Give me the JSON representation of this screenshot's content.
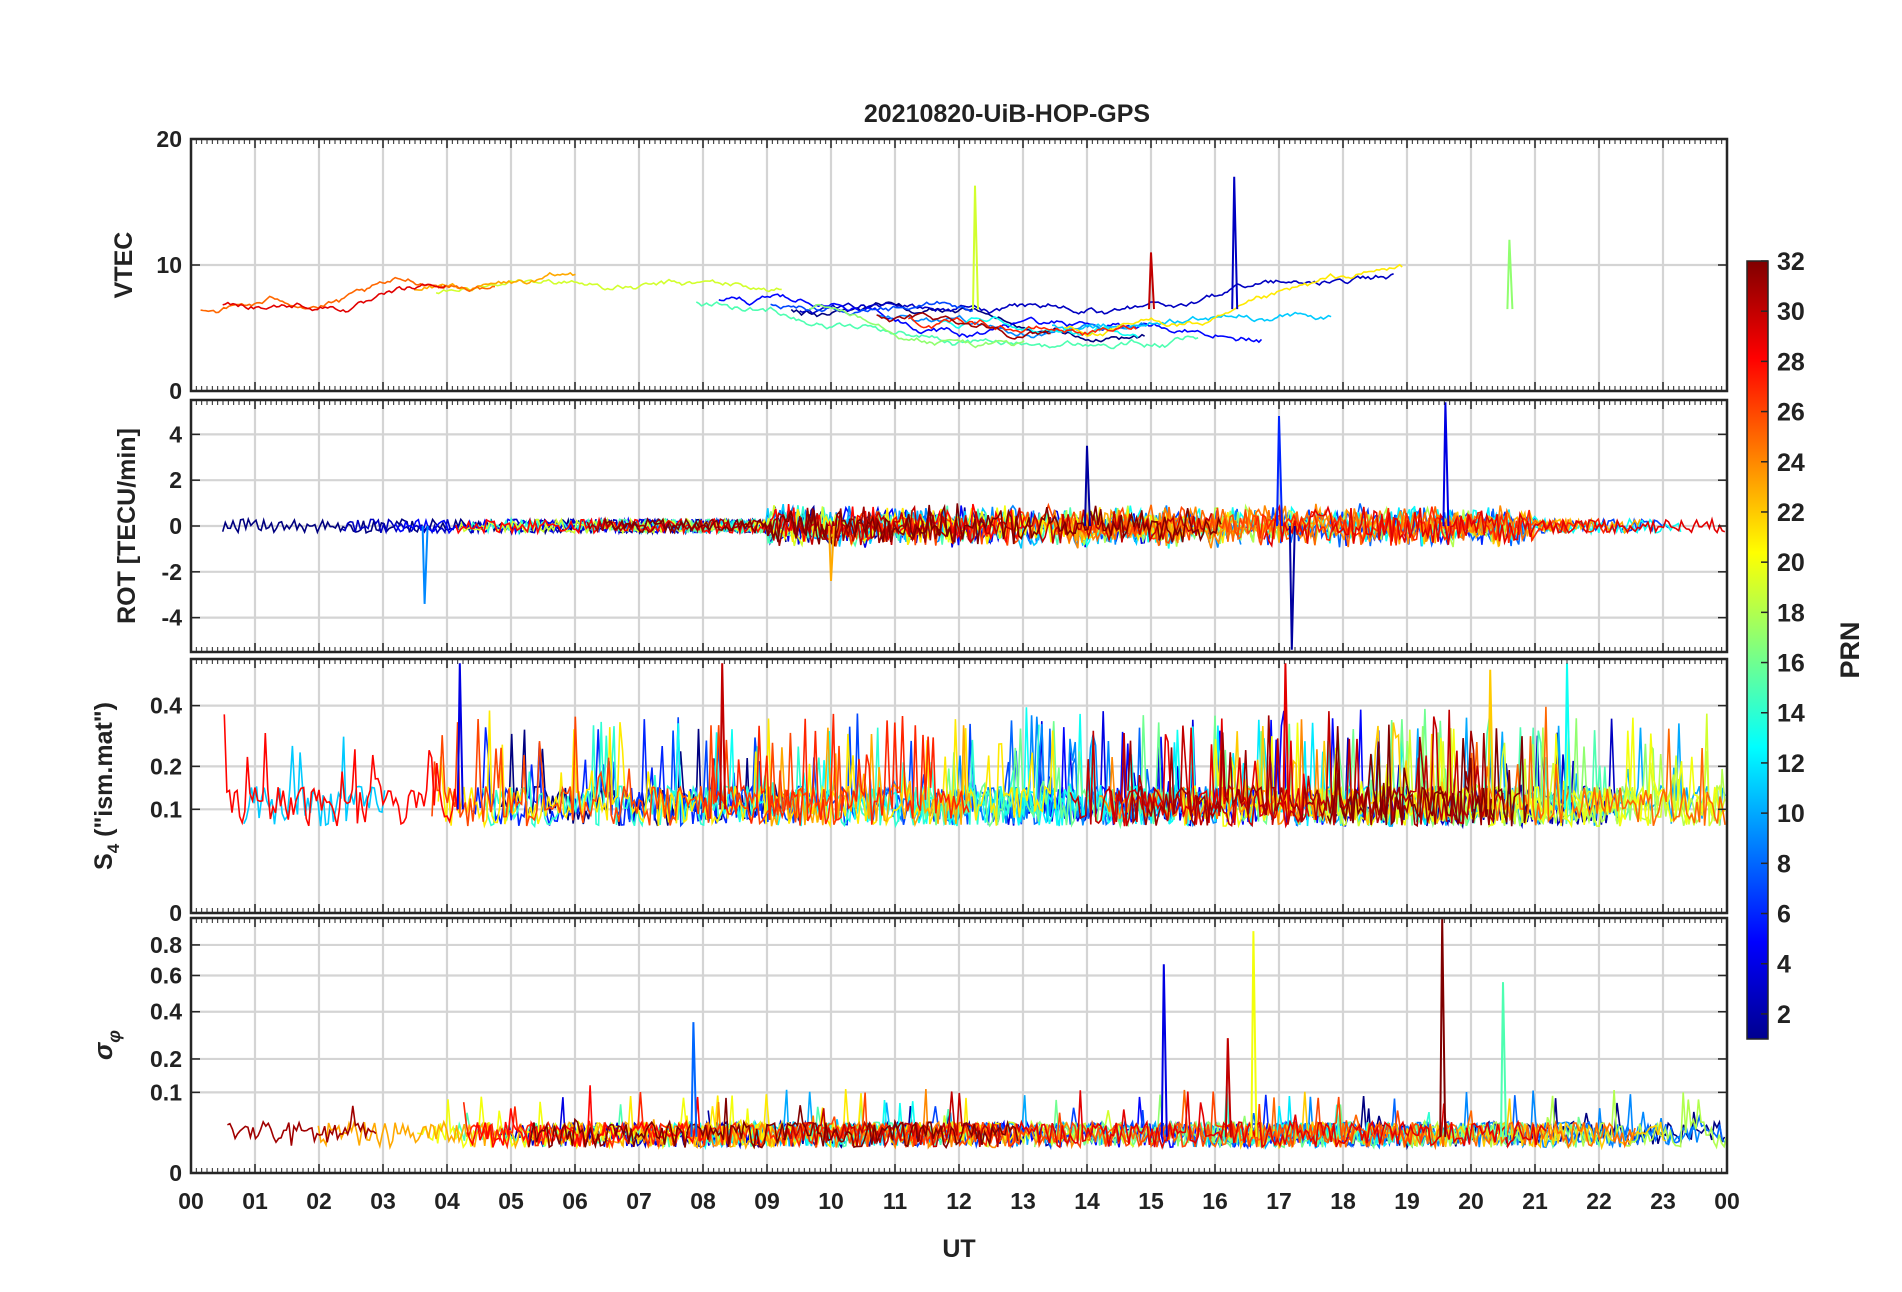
{
  "chart_data": {
    "type": "line",
    "title": "20210820-UiB-HOP-GPS",
    "xlabel": "UT",
    "x_range_hours": [
      0,
      24
    ],
    "x_tick_labels": [
      "00",
      "01",
      "02",
      "03",
      "04",
      "05",
      "06",
      "07",
      "08",
      "09",
      "10",
      "11",
      "12",
      "13",
      "14",
      "15",
      "16",
      "17",
      "18",
      "19",
      "20",
      "21",
      "22",
      "23",
      "00"
    ],
    "colorbar": {
      "label": "PRN",
      "range": [
        1,
        32
      ],
      "tick_labels": [
        "2",
        "4",
        "6",
        "8",
        "10",
        "12",
        "14",
        "16",
        "18",
        "20",
        "22",
        "24",
        "26",
        "28",
        "30",
        "32"
      ],
      "colormap": "jet"
    },
    "panels": [
      {
        "id": "vtec",
        "ylabel": "VTEC",
        "ylim": [
          0,
          20
        ],
        "yticks": [
          0,
          10,
          20
        ],
        "ytick_labels": [
          "0",
          "10",
          "20"
        ],
        "baseline": 6.5,
        "spikes": [
          {
            "prn": 19,
            "time_h": 12.25,
            "value": 16.3
          },
          {
            "prn": 3,
            "time_h": 16.3,
            "value": 17.0
          },
          {
            "prn": 30,
            "time_h": 15.0,
            "value": 11.0
          },
          {
            "prn": 17,
            "time_h": 20.6,
            "value": 12.0
          }
        ]
      },
      {
        "id": "rot",
        "ylabel": "ROT [TECU/min]",
        "ylim": [
          -5.5,
          5.5
        ],
        "yticks": [
          -4,
          -2,
          0,
          2,
          4
        ],
        "ytick_labels": [
          "-4",
          "-2",
          "0",
          "2",
          "4"
        ],
        "baseline": 0,
        "spikes": [
          {
            "prn": 9,
            "time_h": 3.65,
            "value": -3.4
          },
          {
            "prn": 2,
            "time_h": 17.2,
            "value": -5.4
          },
          {
            "prn": 4,
            "time_h": 19.6,
            "value": 5.4
          },
          {
            "prn": 6,
            "time_h": 17.0,
            "value": 4.8
          },
          {
            "prn": 2,
            "time_h": 14.0,
            "value": 3.5
          },
          {
            "prn": 23,
            "time_h": 10.0,
            "value": -2.4
          }
        ]
      },
      {
        "id": "s4",
        "ylabel": "S4 (\"ism.mat\")",
        "ylabel_main": "S",
        "ylabel_sub": "4",
        "ylabel_rest": " (\"ism.mat\")",
        "ylim": [
          0,
          0.6
        ],
        "yticks": [
          0,
          0.1,
          0.2,
          0.4
        ],
        "ytick_labels": [
          "0",
          "0.1",
          "0.2",
          "0.4"
        ],
        "scale": "sqrt",
        "baseline": 0.1,
        "spikes": [
          {
            "prn": 30,
            "time_h": 8.3,
            "value": 0.58
          },
          {
            "prn": 29,
            "time_h": 17.1,
            "value": 0.58
          },
          {
            "prn": 4,
            "time_h": 4.2,
            "value": 0.58
          },
          {
            "prn": 13,
            "time_h": 21.5,
            "value": 0.58
          },
          {
            "prn": 22,
            "time_h": 20.3,
            "value": 0.55
          }
        ]
      },
      {
        "id": "sigma_phi",
        "ylabel": "σφ",
        "ylabel_main": "σ",
        "ylabel_sub": "φ",
        "ylim": [
          0,
          1.0
        ],
        "yticks": [
          0,
          0.1,
          0.2,
          0.4,
          0.6,
          0.8
        ],
        "ytick_labels": [
          "0",
          "0.1",
          "0.2",
          "0.4",
          "0.6",
          "0.8"
        ],
        "scale": "sqrt",
        "baseline": 0.02,
        "spikes": [
          {
            "prn": 8,
            "time_h": 7.85,
            "value": 0.35
          },
          {
            "prn": 4,
            "time_h": 15.2,
            "value": 0.67
          },
          {
            "prn": 20,
            "time_h": 16.6,
            "value": 0.9
          },
          {
            "prn": 32,
            "time_h": 19.55,
            "value": 1.0
          },
          {
            "prn": 15,
            "time_h": 20.5,
            "value": 0.56
          },
          {
            "prn": 30,
            "time_h": 16.2,
            "value": 0.28
          }
        ]
      }
    ]
  }
}
